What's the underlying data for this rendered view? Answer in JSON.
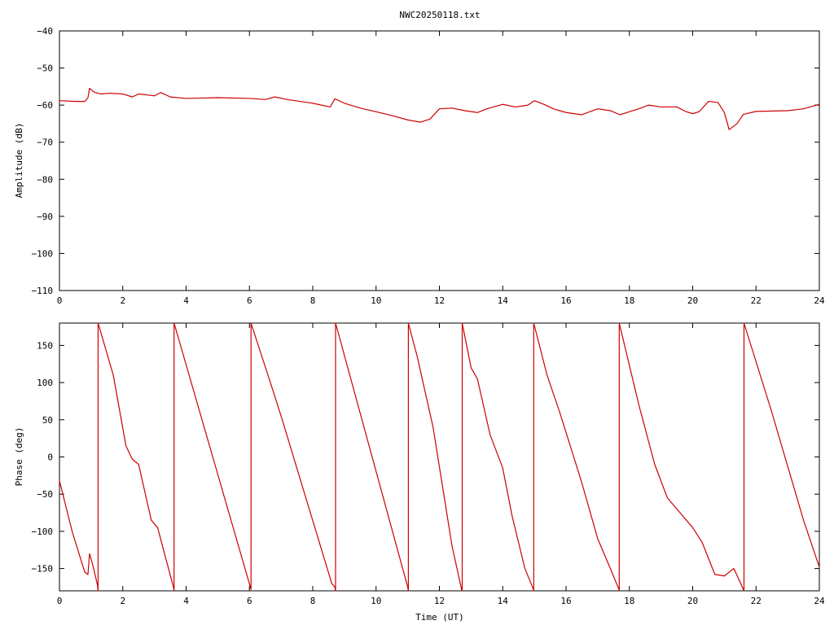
{
  "title": "NWC20250118.txt",
  "chart_data": [
    {
      "type": "line",
      "name": "amplitude-panel",
      "ylabel": "Amplitude (dB)",
      "xlabel": "",
      "xlim": [
        0,
        24
      ],
      "ylim": [
        -110,
        -40
      ],
      "xticks": [
        0,
        2,
        4,
        6,
        8,
        10,
        12,
        14,
        16,
        18,
        20,
        22,
        24
      ],
      "yticks": [
        -110,
        -100,
        -90,
        -80,
        -70,
        -60,
        -50,
        -40
      ],
      "grid": false,
      "series_color": "#cc0000",
      "series": [
        {
          "values": [
            [
              0,
              -58.8
            ],
            [
              0.5,
              -59
            ],
            [
              0.8,
              -59
            ],
            [
              0.9,
              -58
            ],
            [
              0.95,
              -55.5
            ],
            [
              1.1,
              -56.5
            ],
            [
              1.3,
              -57
            ],
            [
              1.6,
              -56.8
            ],
            [
              2.0,
              -57
            ],
            [
              2.3,
              -57.8
            ],
            [
              2.5,
              -57
            ],
            [
              2.8,
              -57.3
            ],
            [
              3.0,
              -57.5
            ],
            [
              3.2,
              -56.6
            ],
            [
              3.5,
              -57.8
            ],
            [
              4.0,
              -58.2
            ],
            [
              5.0,
              -58
            ],
            [
              6.0,
              -58.2
            ],
            [
              6.5,
              -58.5
            ],
            [
              6.8,
              -57.8
            ],
            [
              7.2,
              -58.5
            ],
            [
              8.0,
              -59.5
            ],
            [
              8.55,
              -60.5
            ],
            [
              8.7,
              -58.3
            ],
            [
              9.0,
              -59.5
            ],
            [
              9.5,
              -60.8
            ],
            [
              10.0,
              -61.8
            ],
            [
              10.5,
              -62.8
            ],
            [
              11.0,
              -64
            ],
            [
              11.4,
              -64.6
            ],
            [
              11.7,
              -63.8
            ],
            [
              12.0,
              -61
            ],
            [
              12.4,
              -60.8
            ],
            [
              12.8,
              -61.5
            ],
            [
              13.2,
              -62
            ],
            [
              13.5,
              -61
            ],
            [
              14.0,
              -59.8
            ],
            [
              14.4,
              -60.5
            ],
            [
              14.8,
              -60
            ],
            [
              15.0,
              -58.8
            ],
            [
              15.3,
              -59.8
            ],
            [
              15.6,
              -61
            ],
            [
              16.0,
              -62
            ],
            [
              16.5,
              -62.6
            ],
            [
              17.0,
              -61
            ],
            [
              17.4,
              -61.5
            ],
            [
              17.7,
              -62.6
            ],
            [
              18.0,
              -61.8
            ],
            [
              18.3,
              -61
            ],
            [
              18.6,
              -60
            ],
            [
              19.0,
              -60.5
            ],
            [
              19.5,
              -60.5
            ],
            [
              19.8,
              -61.8
            ],
            [
              20.0,
              -62.3
            ],
            [
              20.2,
              -61.8
            ],
            [
              20.5,
              -59
            ],
            [
              20.8,
              -59.3
            ],
            [
              21.0,
              -62
            ],
            [
              21.15,
              -66.6
            ],
            [
              21.4,
              -65
            ],
            [
              21.6,
              -62.5
            ],
            [
              22.0,
              -61.7
            ],
            [
              23.0,
              -61.5
            ],
            [
              23.5,
              -61
            ],
            [
              24.0,
              -59.8
            ]
          ]
        }
      ]
    },
    {
      "type": "line",
      "name": "phase-panel",
      "ylabel": "Phase (deg)",
      "xlabel": "Time (UT)",
      "xlim": [
        0,
        24
      ],
      "ylim": [
        -180,
        180
      ],
      "xticks": [
        0,
        2,
        4,
        6,
        8,
        10,
        12,
        14,
        16,
        18,
        20,
        22,
        24
      ],
      "yticks": [
        -150,
        -100,
        -50,
        0,
        50,
        100,
        150
      ],
      "grid": false,
      "series_color": "#cc0000",
      "series": [
        {
          "values": [
            [
              0,
              -32
            ],
            [
              0.4,
              -100
            ],
            [
              0.8,
              -155
            ],
            [
              0.9,
              -158
            ],
            [
              0.95,
              -130
            ],
            [
              1.05,
              -145
            ],
            [
              1.2,
              -172
            ],
            [
              1.22,
              -180
            ],
            [
              1.22,
              180
            ],
            [
              1.7,
              110
            ],
            [
              2.1,
              15
            ],
            [
              2.3,
              -3
            ],
            [
              2.5,
              -10
            ],
            [
              2.9,
              -85
            ],
            [
              3.1,
              -95
            ],
            [
              3.6,
              -175
            ],
            [
              3.62,
              -180
            ],
            [
              3.62,
              180
            ],
            [
              6.05,
              -178
            ],
            [
              6.05,
              180
            ],
            [
              6.7,
              95
            ],
            [
              7.0,
              55
            ],
            [
              8.6,
              -170
            ],
            [
              8.7,
              -175
            ],
            [
              8.72,
              -180
            ],
            [
              8.72,
              180
            ],
            [
              11.0,
              -175
            ],
            [
              11.02,
              -180
            ],
            [
              11.02,
              180
            ],
            [
              11.02,
              0
            ],
            [
              11.02,
              180
            ],
            [
              11.3,
              135
            ],
            [
              11.8,
              40
            ],
            [
              12.4,
              -120
            ],
            [
              12.7,
              -178
            ],
            [
              12.72,
              -180
            ],
            [
              12.72,
              180
            ],
            [
              13.0,
              120
            ],
            [
              13.2,
              105
            ],
            [
              13.6,
              30
            ],
            [
              14.0,
              -15
            ],
            [
              14.3,
              -80
            ],
            [
              14.7,
              -150
            ],
            [
              14.97,
              -178
            ],
            [
              14.98,
              -180
            ],
            [
              14.98,
              180
            ],
            [
              15.4,
              110
            ],
            [
              15.8,
              60
            ],
            [
              16.5,
              -35
            ],
            [
              17.0,
              -110
            ],
            [
              17.4,
              -150
            ],
            [
              17.67,
              -178
            ],
            [
              17.68,
              -180
            ],
            [
              17.68,
              180
            ],
            [
              18.3,
              70
            ],
            [
              18.8,
              -10
            ],
            [
              19.2,
              -55
            ],
            [
              19.6,
              -75
            ],
            [
              20.0,
              -95
            ],
            [
              20.3,
              -115
            ],
            [
              20.7,
              -158
            ],
            [
              21.0,
              -160
            ],
            [
              21.3,
              -150
            ],
            [
              21.6,
              -178
            ],
            [
              21.62,
              -180
            ],
            [
              21.62,
              180
            ],
            [
              22.5,
              60
            ],
            [
              23.5,
              -85
            ],
            [
              24.0,
              -148
            ]
          ]
        }
      ]
    }
  ]
}
